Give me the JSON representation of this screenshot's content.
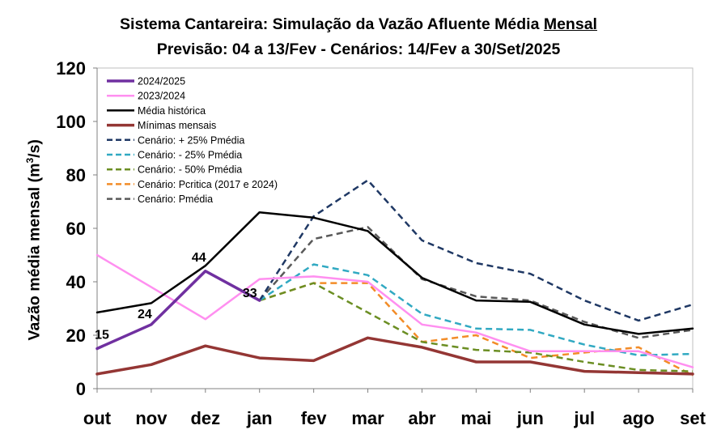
{
  "title_line1": "Sistema Cantareira: Simulação da Vazão Afluente Média",
  "title_line1_underlined": "Mensal",
  "title_line2": "Previsão: 04 a 13/Fev - Cenários: 14/Fev a 30/Set/2025",
  "chart_data": {
    "type": "line",
    "xlabel": "",
    "ylabel_prefix": "Vazão média mensal (m",
    "ylabel_sup": "3",
    "ylabel_suffix": "/s)",
    "ylim": [
      0,
      120
    ],
    "yticks": [
      0,
      20,
      40,
      60,
      80,
      100,
      120
    ],
    "grid": false,
    "legend_position": "top-left",
    "categories": [
      "out",
      "nov",
      "dez",
      "jan",
      "fev",
      "mar",
      "abr",
      "mai",
      "jun",
      "jul",
      "ago",
      "set"
    ],
    "series": [
      {
        "name": "2024/2025",
        "color": "#7030a0",
        "dash": false,
        "width": 3.5,
        "values": [
          15,
          24,
          44,
          33,
          null,
          null,
          null,
          null,
          null,
          null,
          null,
          null
        ],
        "labels": [
          "15",
          "24",
          "44",
          "33",
          null,
          null,
          null,
          null,
          null,
          null,
          null,
          null
        ]
      },
      {
        "name": "2023/2024",
        "color": "#ff8ff0",
        "dash": false,
        "width": 2.5,
        "values": [
          50,
          38,
          26,
          41,
          42,
          40,
          24,
          21,
          14,
          14,
          14,
          8
        ]
      },
      {
        "name": "Média histórica",
        "color": "#000000",
        "dash": false,
        "width": 2.5,
        "values": [
          28.5,
          32,
          46,
          66,
          64,
          59,
          41.5,
          33,
          32.5,
          24,
          20.5,
          22.5
        ]
      },
      {
        "name": "Mínimas mensais",
        "color": "#943634",
        "dash": false,
        "width": 3.5,
        "values": [
          5.5,
          9,
          16,
          11.5,
          10.5,
          19,
          15.5,
          10,
          10,
          6.5,
          6,
          5.5
        ]
      },
      {
        "name": "Cenário: + 25% Pmédia",
        "color": "#1f3864",
        "dash": true,
        "width": 2.5,
        "values": [
          null,
          null,
          null,
          33,
          64.5,
          78,
          55.5,
          47,
          43,
          33,
          25.5,
          31.5
        ]
      },
      {
        "name": "Cenário: - 25% Pmédia",
        "color": "#31a9c2",
        "dash": true,
        "width": 2.5,
        "values": [
          null,
          null,
          null,
          33,
          46.5,
          42.5,
          28,
          22.5,
          22,
          16.5,
          12.5,
          13
        ]
      },
      {
        "name": "Cenário: - 50% Pmédia",
        "color": "#6b8e23",
        "dash": true,
        "width": 2.5,
        "values": [
          null,
          null,
          null,
          33,
          39.5,
          28.5,
          17.5,
          14.5,
          13.5,
          10,
          7,
          6.5
        ]
      },
      {
        "name": "Cenário: Pcritica (2017 e 2024)",
        "color": "#f28c28",
        "dash": true,
        "width": 2.5,
        "values": [
          null,
          null,
          null,
          33,
          39.5,
          39.5,
          17.5,
          20,
          11.5,
          13.5,
          15.5,
          5
        ]
      },
      {
        "name": "Cenário: Pmédia",
        "color": "#595959",
        "dash": true,
        "width": 2.5,
        "values": [
          null,
          null,
          null,
          33,
          56,
          60.5,
          41,
          34.5,
          33,
          25,
          19,
          22
        ]
      }
    ]
  }
}
